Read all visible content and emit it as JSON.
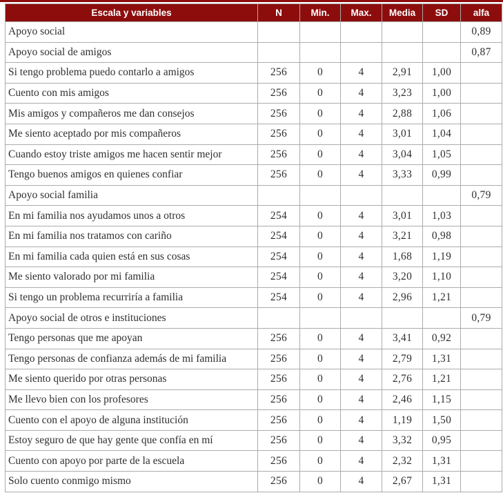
{
  "colors": {
    "header_bg": "#8d0d0d",
    "header_text": "#ffffff",
    "grid_border": "#ababab",
    "body_text": "#2f2f2f"
  },
  "table": {
    "columns": {
      "label": "Escala y variables",
      "n": "N",
      "min": "Min.",
      "max": "Max.",
      "media": "Media",
      "sd": "SD",
      "alfa": "alfa"
    },
    "rows": [
      {
        "label": "Apoyo social",
        "n": "",
        "min": "",
        "max": "",
        "media": "",
        "sd": "",
        "alfa": "0,89"
      },
      {
        "label": "Apoyo social de amigos",
        "n": "",
        "min": "",
        "max": "",
        "media": "",
        "sd": "",
        "alfa": "0,87"
      },
      {
        "label": "Si tengo problema puedo contarlo a amigos",
        "n": "256",
        "min": "0",
        "max": "4",
        "media": "2,91",
        "sd": "1,00",
        "alfa": ""
      },
      {
        "label": "Cuento con mis amigos",
        "n": "256",
        "min": "0",
        "max": "4",
        "media": "3,23",
        "sd": "1,00",
        "alfa": ""
      },
      {
        "label": "Mis amigos y compañeros me dan consejos",
        "n": "256",
        "min": "0",
        "max": "4",
        "media": "2,88",
        "sd": "1,06",
        "alfa": ""
      },
      {
        "label": "Me siento aceptado por mis compañeros",
        "n": "256",
        "min": "0",
        "max": "4",
        "media": "3,01",
        "sd": "1,04",
        "alfa": ""
      },
      {
        "label": "Cuando estoy triste amigos me hacen sentir mejor",
        "n": "256",
        "min": "0",
        "max": "4",
        "media": "3,04",
        "sd": "1,05",
        "alfa": ""
      },
      {
        "label": "Tengo buenos amigos en quienes confiar",
        "n": "256",
        "min": "0",
        "max": "4",
        "media": "3,33",
        "sd": "0,99",
        "alfa": ""
      },
      {
        "label": "Apoyo social familia",
        "n": "",
        "min": "",
        "max": "",
        "media": "",
        "sd": "",
        "alfa": "0,79"
      },
      {
        "label": "En mi familia nos ayudamos unos a otros",
        "n": "254",
        "min": "0",
        "max": "4",
        "media": "3,01",
        "sd": "1,03",
        "alfa": ""
      },
      {
        "label": "En mi familia nos tratamos con cariño",
        "n": "254",
        "min": "0",
        "max": "4",
        "media": "3,21",
        "sd": "0,98",
        "alfa": ""
      },
      {
        "label": "En mi familia cada quien está en sus cosas",
        "n": "254",
        "min": "0",
        "max": "4",
        "media": "1,68",
        "sd": "1,19",
        "alfa": ""
      },
      {
        "label": "Me siento valorado por mi familia",
        "n": "254",
        "min": "0",
        "max": "4",
        "media": "3,20",
        "sd": "1,10",
        "alfa": ""
      },
      {
        "label": "Si tengo un problema recurriría a familia",
        "n": "254",
        "min": "0",
        "max": "4",
        "media": "2,96",
        "sd": "1,21",
        "alfa": ""
      },
      {
        "label": "Apoyo social de otros e instituciones",
        "n": "",
        "min": "",
        "max": "",
        "media": "",
        "sd": "",
        "alfa": "0,79"
      },
      {
        "label": "Tengo personas que me apoyan",
        "n": "256",
        "min": "0",
        "max": "4",
        "media": "3,41",
        "sd": "0,92",
        "alfa": ""
      },
      {
        "label": "Tengo personas de confianza además de mi familia",
        "n": "256",
        "min": "0",
        "max": "4",
        "media": "2,79",
        "sd": "1,31",
        "alfa": ""
      },
      {
        "label": "Me siento querido por otras personas",
        "n": "256",
        "min": "0",
        "max": "4",
        "media": "2,76",
        "sd": "1,21",
        "alfa": ""
      },
      {
        "label": "Me llevo bien con los profesores",
        "n": "256",
        "min": "0",
        "max": "4",
        "media": "2,46",
        "sd": "1,15",
        "alfa": ""
      },
      {
        "label": "Cuento con el apoyo de alguna institución",
        "n": "256",
        "min": "0",
        "max": "4",
        "media": "1,19",
        "sd": "1,50",
        "alfa": ""
      },
      {
        "label": "Estoy seguro de que hay gente que confía en mí",
        "n": "256",
        "min": "0",
        "max": "4",
        "media": "3,32",
        "sd": "0,95",
        "alfa": ""
      },
      {
        "label": "Cuento con apoyo por parte de la escuela",
        "n": "256",
        "min": "0",
        "max": "4",
        "media": "2,32",
        "sd": "1,31",
        "alfa": ""
      },
      {
        "label": "Solo cuento conmigo mismo",
        "n": "256",
        "min": "0",
        "max": "4",
        "media": "2,67",
        "sd": "1,31",
        "alfa": ""
      }
    ]
  }
}
